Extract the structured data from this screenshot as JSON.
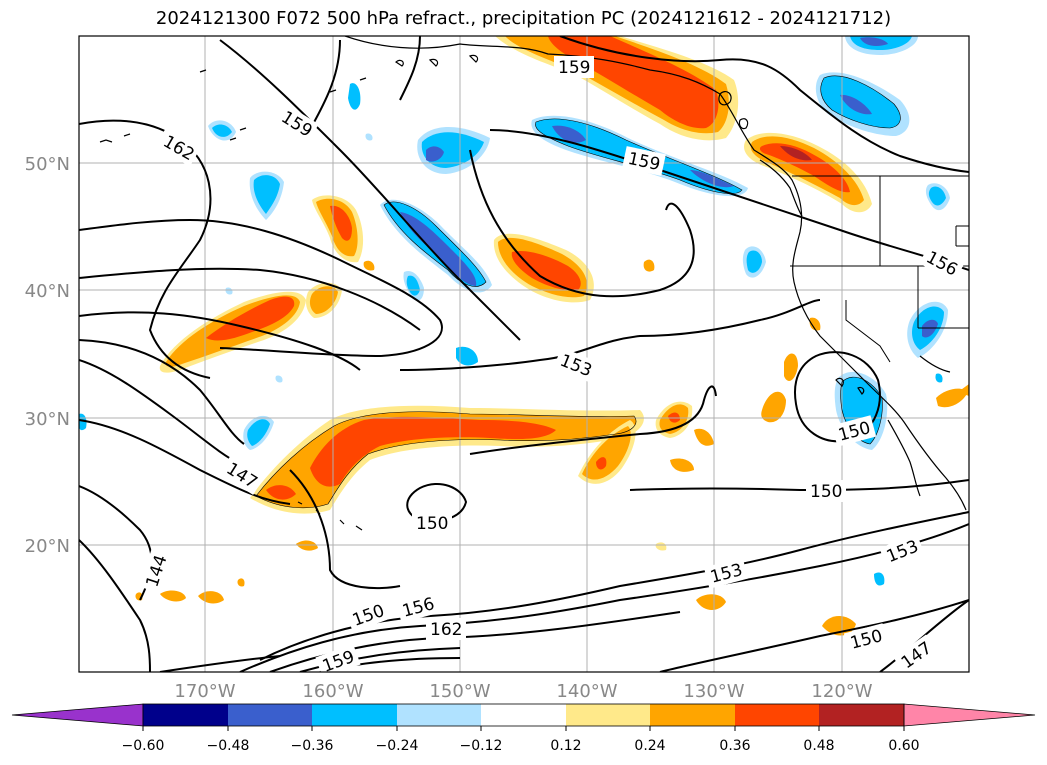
{
  "title": "2024121300 F072 500 hPa refract., precipitation PC (2024121612 - 2024121712)",
  "lat_labels": [
    "50°N",
    "40°N",
    "30°N",
    "20°N"
  ],
  "lon_labels": [
    "170°W",
    "160°W",
    "150°W",
    "140°W",
    "130°W",
    "120°W"
  ],
  "contour_labels": [
    "162",
    "159",
    "159",
    "159",
    "156",
    "153",
    "150",
    "150",
    "150",
    "147",
    "144",
    "150",
    "156",
    "162",
    "159",
    "153",
    "153",
    "150",
    "147"
  ],
  "colorbar": {
    "ticks": [
      "−0.60",
      "−0.48",
      "−0.36",
      "−0.24",
      "−0.12",
      "0.12",
      "0.24",
      "0.36",
      "0.48",
      "0.60"
    ],
    "colors": [
      "#9932cc",
      "#00008b",
      "#3a5fcd",
      "#00bfff",
      "#b0e2ff",
      "#ffffff",
      "#ffe98a",
      "#ffa500",
      "#ff4500",
      "#b22222",
      "#ff85a8"
    ]
  }
}
